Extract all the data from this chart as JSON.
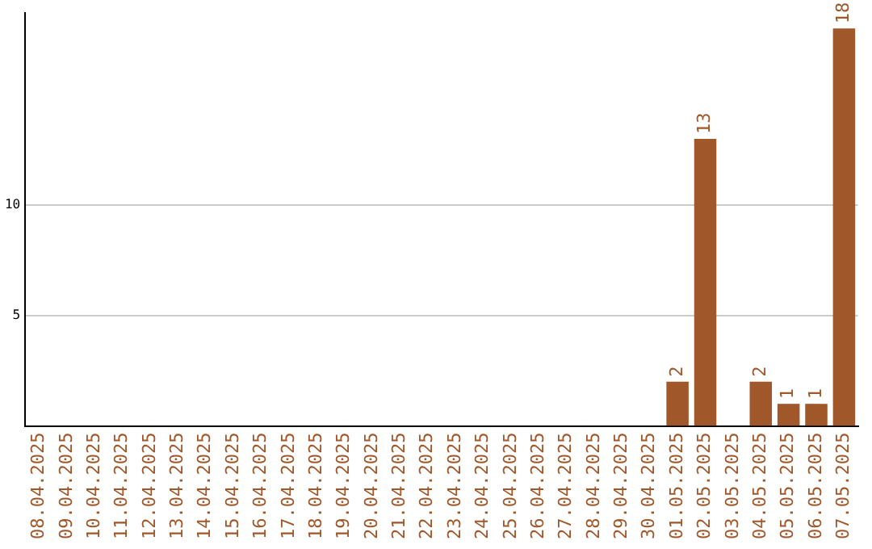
{
  "chart_data": {
    "type": "bar",
    "categories": [
      "08.04.2025",
      "09.04.2025",
      "10.04.2025",
      "11.04.2025",
      "12.04.2025",
      "13.04.2025",
      "14.04.2025",
      "15.04.2025",
      "16.04.2025",
      "17.04.2025",
      "18.04.2025",
      "19.04.2025",
      "20.04.2025",
      "21.04.2025",
      "22.04.2025",
      "23.04.2025",
      "24.04.2025",
      "25.04.2025",
      "26.04.2025",
      "27.04.2025",
      "28.04.2025",
      "29.04.2025",
      "30.04.2025",
      "01.05.2025",
      "02.05.2025",
      "03.05.2025",
      "04.05.2025",
      "05.05.2025",
      "06.05.2025",
      "07.05.2025"
    ],
    "values": [
      0,
      0,
      0,
      0,
      0,
      0,
      0,
      0,
      0,
      0,
      0,
      0,
      0,
      0,
      0,
      0,
      0,
      0,
      0,
      0,
      0,
      0,
      0,
      2,
      13,
      0,
      2,
      1,
      1,
      18
    ],
    "value_labels": [
      null,
      null,
      null,
      null,
      null,
      null,
      null,
      null,
      null,
      null,
      null,
      null,
      null,
      null,
      null,
      null,
      null,
      null,
      null,
      null,
      null,
      null,
      null,
      "2",
      "13",
      null,
      "2",
      "1",
      "1",
      "18"
    ],
    "color": "#a0572a",
    "ylim": [
      0,
      18.7
    ],
    "yticks": [
      5,
      10
    ],
    "grid": "y",
    "legend": false
  }
}
